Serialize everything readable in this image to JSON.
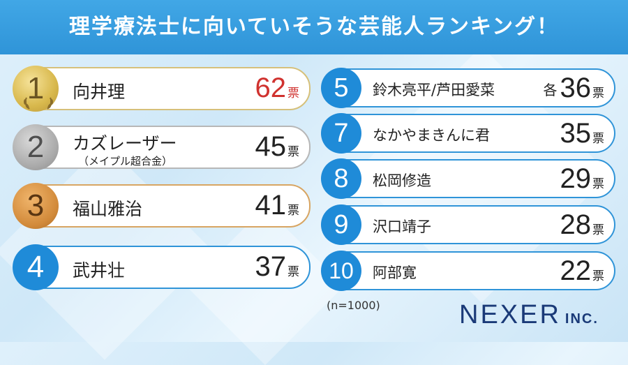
{
  "title": "理学療法士に向いていそうな芸能人ランキング！",
  "left_rankings": [
    {
      "rank": "1",
      "name": "向井理",
      "sub": "",
      "votes": "62",
      "unit": "票",
      "style": "gold"
    },
    {
      "rank": "2",
      "name": "カズレーザー",
      "sub": "（メイプル超合金）",
      "votes": "45",
      "unit": "票",
      "style": "silver"
    },
    {
      "rank": "3",
      "name": "福山雅治",
      "sub": "",
      "votes": "41",
      "unit": "票",
      "style": "bronze"
    },
    {
      "rank": "4",
      "name": "武井壮",
      "sub": "",
      "votes": "37",
      "unit": "票",
      "style": "blue"
    }
  ],
  "right_rankings": [
    {
      "rank": "5",
      "name": "鈴木亮平/芦田愛菜",
      "prefix": "各",
      "votes": "36",
      "unit": "票"
    },
    {
      "rank": "7",
      "name": "なかやまきんに君",
      "prefix": "",
      "votes": "35",
      "unit": "票"
    },
    {
      "rank": "8",
      "name": "松岡修造",
      "prefix": "",
      "votes": "29",
      "unit": "票"
    },
    {
      "rank": "9",
      "name": "沢口靖子",
      "prefix": "",
      "votes": "28",
      "unit": "票"
    },
    {
      "rank": "10",
      "name": "阿部寛",
      "prefix": "",
      "votes": "22",
      "unit": "票"
    }
  ],
  "sample_size": "(n=1000)",
  "logo": {
    "main": "NEXER",
    "suffix": "INC."
  },
  "colors": {
    "accent": "#2f94d8",
    "badge_blue": "#1f8bd8",
    "highlight_red": "#d0322f",
    "logo": "#1a3a78"
  }
}
